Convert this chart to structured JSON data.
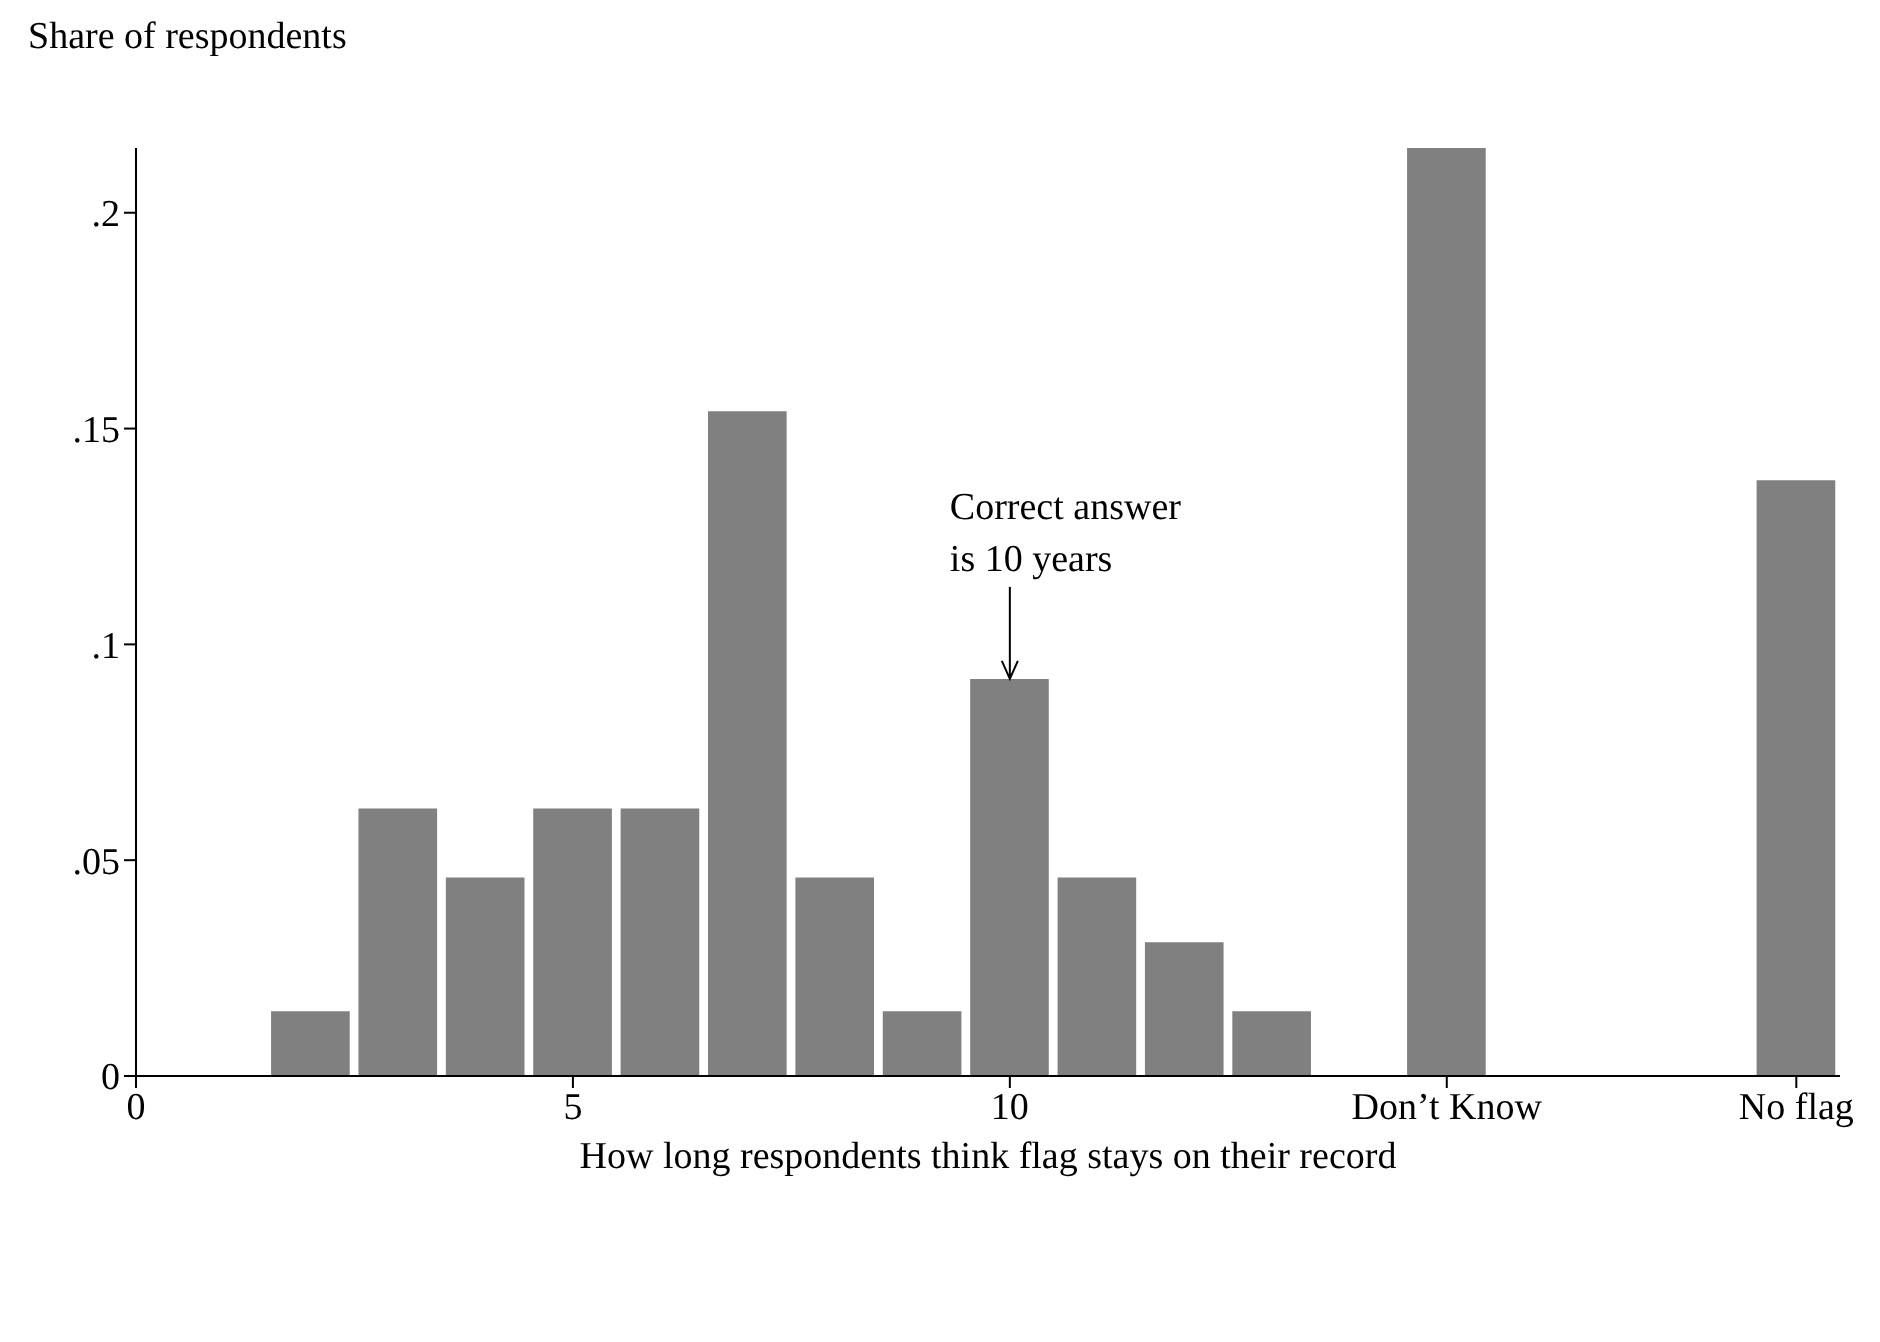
{
  "chart_data": {
    "type": "bar",
    "ylabel": "Share of respondents",
    "xlabel": "How long respondents think flag stays on their record",
    "x": [
      2,
      3,
      4,
      5,
      6,
      7,
      8,
      9,
      10,
      11,
      12,
      13,
      15,
      19
    ],
    "values": [
      0.015,
      0.062,
      0.046,
      0.062,
      0.062,
      0.154,
      0.046,
      0.015,
      0.092,
      0.046,
      0.031,
      0.015,
      0.215,
      0.138
    ],
    "color": "#808080",
    "xlim": [
      0,
      19.5
    ],
    "xticks": [
      0,
      5,
      10,
      {
        "value": 15,
        "label": "Don’t Know"
      },
      {
        "value": 19,
        "label": "No flag"
      }
    ],
    "ylim": [
      0,
      0.215
    ],
    "yticks": [
      0,
      {
        "value": 0.05,
        "label": ".05"
      },
      {
        "value": 0.1,
        "label": ".1"
      },
      {
        "value": 0.15,
        "label": ".15"
      },
      {
        "value": 0.2,
        "label": ".2"
      }
    ],
    "annotations": [
      {
        "text": "Correct answer\nis 10 years",
        "x": 10,
        "y": 0.092
      }
    ]
  }
}
